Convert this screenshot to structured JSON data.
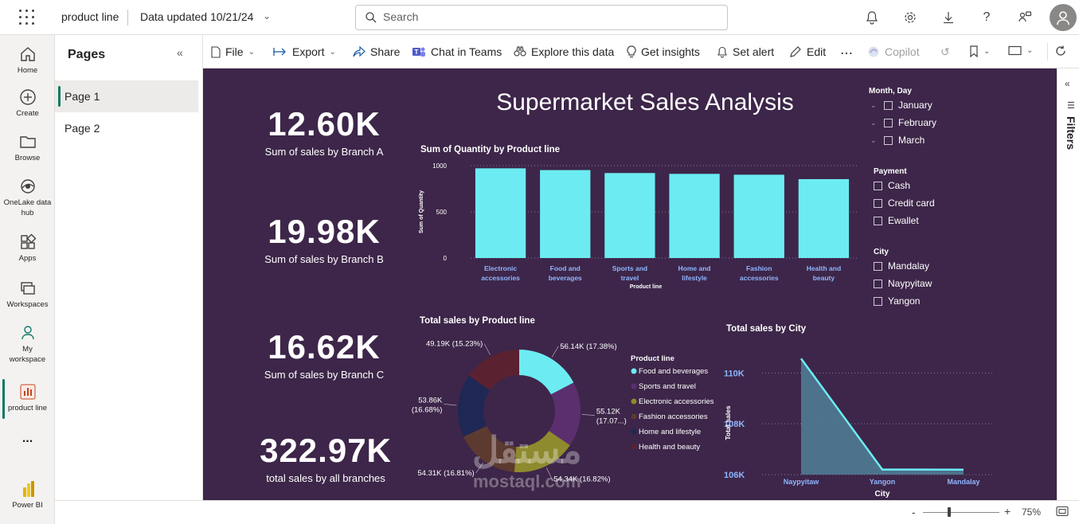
{
  "topbar": {
    "app_title": "product line",
    "data_updated": "Data updated 10/21/24",
    "search_placeholder": "Search"
  },
  "leftnav": {
    "items": [
      {
        "label": "Home",
        "icon": "home-icon"
      },
      {
        "label": "Create",
        "icon": "plus-circle-icon"
      },
      {
        "label": "Browse",
        "icon": "folder-icon"
      },
      {
        "label": "OneLake data hub",
        "icon": "onelake-icon"
      },
      {
        "label": "Apps",
        "icon": "apps-icon"
      },
      {
        "label": "Workspaces",
        "icon": "workspaces-icon"
      },
      {
        "label": "My workspace",
        "icon": "person-icon"
      },
      {
        "label": "product line",
        "icon": "report-icon"
      }
    ],
    "more": "...",
    "brand": "Power BI"
  },
  "pages_pane": {
    "title": "Pages",
    "pages": [
      "Page 1",
      "Page 2"
    ],
    "active": "Page 1"
  },
  "toolbar": {
    "file": "File",
    "export": "Export",
    "share": "Share",
    "chat": "Chat in Teams",
    "explore": "Explore this data",
    "insights": "Get insights",
    "alert": "Set alert",
    "edit": "Edit",
    "more": "⋯",
    "copilot": "Copilot"
  },
  "report": {
    "title": "Supermarket Sales Analysis",
    "kpis": [
      {
        "value": "12.60K",
        "label": "Sum of sales by Branch A"
      },
      {
        "value": "19.98K",
        "label": "Sum of sales by Branch B"
      },
      {
        "value": "16.62K",
        "label": "Sum of sales by Branch C"
      },
      {
        "value": "322.97K",
        "label": "total sales by all branches"
      }
    ],
    "slicers": {
      "month": {
        "title": "Month, Day",
        "items": [
          "January",
          "February",
          "March"
        ]
      },
      "payment": {
        "title": "Payment",
        "items": [
          "Cash",
          "Credit card",
          "Ewallet"
        ]
      },
      "city": {
        "title": "City",
        "items": [
          "Mandalay",
          "Naypyitaw",
          "Yangon"
        ]
      }
    },
    "colors": {
      "canvas_bg": "#3d2649",
      "bar": "#6cecf2",
      "line": "#6cecf2",
      "area": "#4e7690",
      "axis_label": "#8fb6ff"
    }
  },
  "filters_label": "Filters",
  "status": {
    "zoom": "75%",
    "minus": "-",
    "plus": "+"
  },
  "watermark": {
    "arabic": "مستقل",
    "latin": "mostaql.com"
  },
  "chart_data": [
    {
      "type": "bar",
      "title": "Sum of Quantity by Product line",
      "xlabel": "Product line",
      "ylabel": "Sum of Quantity",
      "categories": [
        "Electronic accessories",
        "Food and beverages",
        "Sports and travel",
        "Home and lifestyle",
        "Fashion accessories",
        "Health and beauty"
      ],
      "category_lines": [
        [
          "Electronic",
          "accessories"
        ],
        [
          "Food and",
          "beverages"
        ],
        [
          "Sports and",
          "travel"
        ],
        [
          "Home and",
          "lifestyle"
        ],
        [
          "Fashion",
          "accessories"
        ],
        [
          "Health and",
          "beauty"
        ]
      ],
      "values": [
        971,
        952,
        920,
        911,
        902,
        854
      ],
      "ylim": [
        0,
        1000
      ],
      "yticks": [
        "0",
        "500",
        "1000"
      ],
      "grid": true
    },
    {
      "type": "pie",
      "donut": true,
      "title": "Total sales by Product line",
      "legend_title": "Product line",
      "legend_position": "right",
      "labels": [
        "Food and beverages",
        "Sports and travel",
        "Electronic accessories",
        "Fashion accessories",
        "Home and lifestyle",
        "Health and beauty"
      ],
      "values": [
        56.14,
        55.12,
        54.34,
        54.31,
        53.86,
        49.19
      ],
      "data_labels": [
        "56.14K (17.38%)",
        "55.12K (17.07...)",
        "54.34K (16.82%)",
        "54.31K (16.81%)",
        "53.86K (16.68%)",
        "49.19K (15.23%)"
      ],
      "colors": [
        "#6cecf2",
        "#5b2f6e",
        "#8e8a2e",
        "#5c3a30",
        "#1f2755",
        "#5a2230"
      ]
    },
    {
      "type": "area",
      "title": "Total sales by City",
      "xlabel": "City",
      "ylabel": "Total sales",
      "categories": [
        "Naypyitaw",
        "Yangon",
        "Mandalay"
      ],
      "values": [
        110568,
        106200,
        106197
      ],
      "ylim": [
        106000,
        110700
      ],
      "yticks": [
        "106K",
        "108K",
        "110K"
      ],
      "grid": true
    }
  ]
}
